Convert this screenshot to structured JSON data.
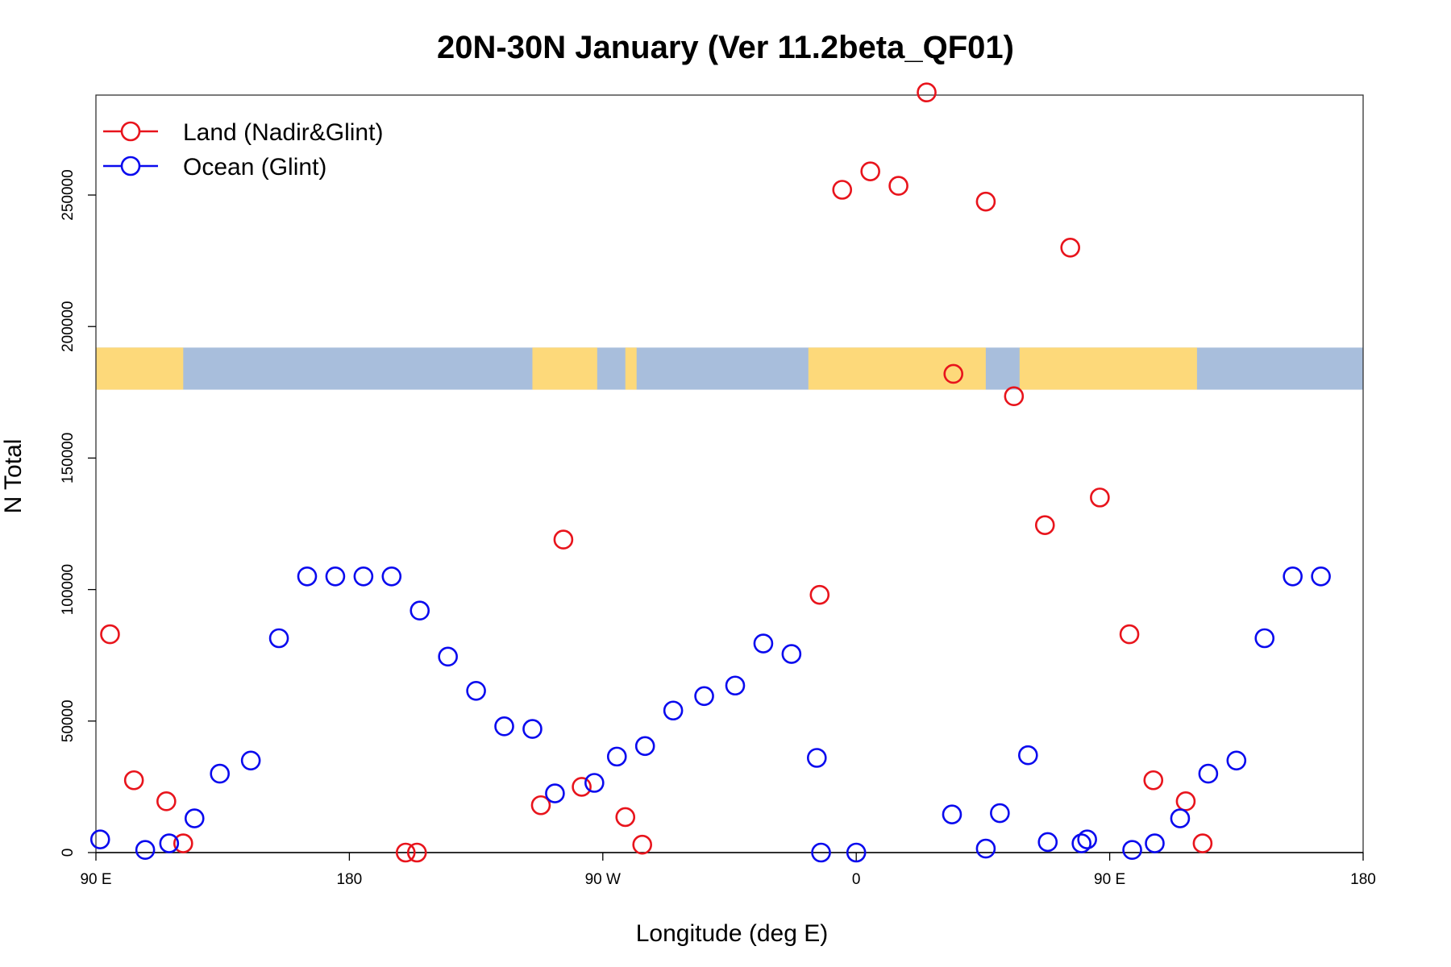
{
  "chart_data": {
    "type": "scatter",
    "title": "20N-30N January (Ver 11.2beta_QF01)",
    "xlabel": "Longitude (deg E)",
    "ylabel": "N Total",
    "xlim": [
      90,
      540
    ],
    "ylim": [
      0,
      288000
    ],
    "x_ticks": [
      {
        "value": 90,
        "label": "90 E"
      },
      {
        "value": 180,
        "label": "180"
      },
      {
        "value": 270,
        "label": "90 W"
      },
      {
        "value": 360,
        "label": "0"
      },
      {
        "value": 450,
        "label": "90 E"
      },
      {
        "value": 540,
        "label": "180"
      }
    ],
    "y_ticks": [
      {
        "value": 0,
        "label": "0"
      },
      {
        "value": 50000,
        "label": "50000"
      },
      {
        "value": 100000,
        "label": "100000"
      },
      {
        "value": 150000,
        "label": "150000"
      },
      {
        "value": 200000,
        "label": "200000"
      },
      {
        "value": 250000,
        "label": "250000"
      }
    ],
    "legend": {
      "position": "top-left",
      "entries": [
        {
          "label": "Land (Nadir&Glint)",
          "color": "#e8141c"
        },
        {
          "label": "Ocean (Glint)",
          "color": "#0a0aee"
        }
      ]
    },
    "map_strip": {
      "description_hidden": true,
      "y_range": [
        176000,
        192000
      ],
      "ocean_color": "#a8bedc",
      "land_color": "#fdd97a",
      "land_lon_ranges": [
        [
          90,
          121
        ],
        [
          245,
          268
        ],
        [
          278,
          282
        ],
        [
          343,
          406
        ],
        [
          418,
          481
        ]
      ]
    },
    "series": [
      {
        "name": "Land (Nadir&Glint)",
        "color": "#e8141c",
        "points": [
          [
            95,
            83000
          ],
          [
            103.5,
            27500
          ],
          [
            115,
            19500
          ],
          [
            121,
            3500
          ],
          [
            200,
            0
          ],
          [
            204,
            0
          ],
          [
            248,
            18000
          ],
          [
            256,
            119000
          ],
          [
            262.5,
            25000
          ],
          [
            278,
            13500
          ],
          [
            284,
            3000
          ],
          [
            347,
            98000
          ],
          [
            355,
            252000
          ],
          [
            365,
            259000
          ],
          [
            375,
            253500
          ],
          [
            385,
            289000
          ],
          [
            394.5,
            182000
          ],
          [
            406,
            247500
          ],
          [
            416,
            173500
          ],
          [
            427,
            124500
          ],
          [
            436,
            230000
          ],
          [
            446.5,
            135000
          ],
          [
            457,
            83000
          ],
          [
            465.5,
            27500
          ],
          [
            477,
            19500
          ],
          [
            483,
            3500
          ]
        ]
      },
      {
        "name": "Ocean (Glint)",
        "color": "#0a0aee",
        "points": [
          [
            91.5,
            5000
          ],
          [
            107.5,
            1000
          ],
          [
            116,
            3500
          ],
          [
            125,
            13000
          ],
          [
            134,
            30000
          ],
          [
            145,
            35000
          ],
          [
            155,
            81500
          ],
          [
            165,
            105000
          ],
          [
            175,
            105000
          ],
          [
            185,
            105000
          ],
          [
            195,
            105000
          ],
          [
            205,
            92000
          ],
          [
            215,
            74500
          ],
          [
            225,
            61500
          ],
          [
            235,
            48000
          ],
          [
            245,
            47000
          ],
          [
            253,
            22500
          ],
          [
            267,
            26500
          ],
          [
            275,
            36500
          ],
          [
            285,
            40500
          ],
          [
            295,
            54000
          ],
          [
            306,
            59500
          ],
          [
            317,
            63500
          ],
          [
            327,
            79500
          ],
          [
            337,
            75500
          ],
          [
            346,
            36000
          ],
          [
            347.5,
            0
          ],
          [
            360,
            0
          ],
          [
            394,
            14500
          ],
          [
            406,
            1500
          ],
          [
            411,
            15000
          ],
          [
            421,
            37000
          ],
          [
            428,
            4000
          ],
          [
            440,
            3500
          ],
          [
            442,
            5000
          ],
          [
            458,
            1000
          ],
          [
            466,
            3500
          ],
          [
            475,
            13000
          ],
          [
            485,
            30000
          ],
          [
            495,
            35000
          ],
          [
            505,
            81500
          ],
          [
            515,
            105000
          ],
          [
            525,
            105000
          ]
        ]
      }
    ]
  }
}
